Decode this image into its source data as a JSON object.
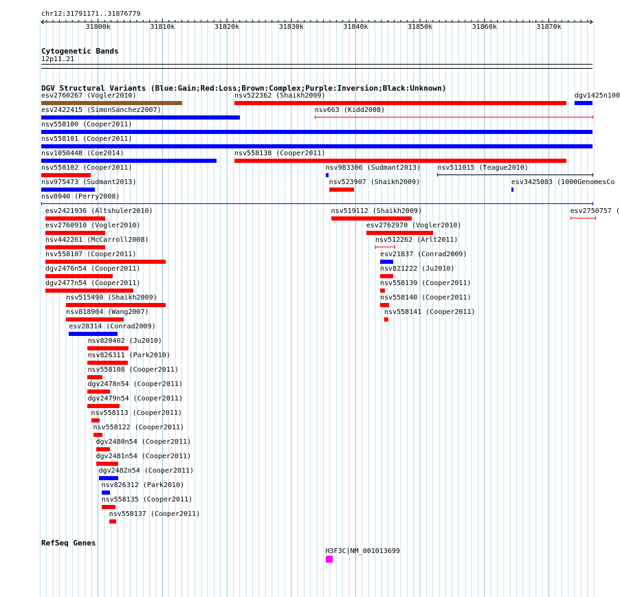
{
  "ruler": {
    "locus": "chr12:31791171..31876779",
    "start": 31791171,
    "end": 31876779,
    "ticks": [
      "31800k",
      "31810k",
      "31820k",
      "31830k",
      "31840k",
      "31850k",
      "31860k",
      "31870k"
    ]
  },
  "cytoband": {
    "title": "Cytogenetic Bands",
    "band": "12p11.21"
  },
  "dgv": {
    "title": "DGV Structural Variants (Blue:Gain;Red:Loss;Brown:Complex;Purple:Inversion;Black:Unknown)",
    "colors": {
      "gain": "#0000ff",
      "loss": "#ff0000",
      "complex": "#8b5a2b",
      "inversion": "#800080",
      "unknown": "#000000"
    },
    "features": [
      {
        "label": "esv2760267 (Vogler2010)",
        "type": "complex",
        "start": 31791171,
        "end": 31813061,
        "row": 0
      },
      {
        "label": "nsv522362 (Shaikh2009)",
        "type": "loss",
        "start": 31821171,
        "end": 31872681,
        "row": 0
      },
      {
        "label": "dgv1425n100",
        "type": "gain",
        "start": 31873971,
        "end": 31876779,
        "row": 0
      },
      {
        "label": "esv2422415 (SimonSanchez2007)",
        "type": "gain",
        "start": 31791171,
        "end": 31822021,
        "row": 1
      },
      {
        "label": "nsv663 (Kidd2008)",
        "type": "loss-line",
        "start": 31833621,
        "end": 31876779,
        "row": 1
      },
      {
        "label": "nsv558100 (Cooper2011)",
        "type": "gain",
        "start": 31791171,
        "end": 31876779,
        "row": 2
      },
      {
        "label": "nsv558101 (Cooper2011)",
        "type": "gain",
        "start": 31791171,
        "end": 31876779,
        "row": 3
      },
      {
        "label": "nsv1050448 (Coe2014)",
        "type": "gain",
        "start": 31791171,
        "end": 31818371,
        "row": 4
      },
      {
        "label": "nsv558138 (Cooper2011)",
        "type": "loss",
        "start": 31821171,
        "end": 31872681,
        "row": 4
      },
      {
        "label": "nsv558102 (Cooper2011)",
        "type": "loss",
        "start": 31791171,
        "end": 31798891,
        "row": 5
      },
      {
        "label": "nsv983306 (Sudmant2013)",
        "type": "gain",
        "start": 31835311,
        "end": 31835741,
        "row": 5
      },
      {
        "label": "nsv511015 (Teague2010)",
        "type": "unknown-line",
        "start": 31852691,
        "end": 31876779,
        "row": 5
      },
      {
        "label": "nsv975473 (Sudmant2013)",
        "type": "gain",
        "start": 31791171,
        "end": 31799511,
        "row": 6
      },
      {
        "label": "nsv523907 (Shaikh2009)",
        "type": "loss",
        "start": 31835851,
        "end": 31839721,
        "row": 6
      },
      {
        "label": "esv3425083 (1000GenomesCo",
        "type": "gain",
        "start": 31864171,
        "end": 31864391,
        "row": 6
      },
      {
        "label": "nsv8940 (Perry2008)",
        "type": "gain-line",
        "start": 31791171,
        "end": 31876779,
        "row": 7
      },
      {
        "label": "esv2421936 (Altshuler2010)",
        "type": "loss",
        "start": 31791811,
        "end": 31801061,
        "row": 8
      },
      {
        "label": "nsv519112 (Shaikh2009)",
        "type": "loss",
        "start": 31836171,
        "end": 31848741,
        "row": 8
      },
      {
        "label": "esv2750757 (",
        "type": "loss-line",
        "start": 31873321,
        "end": 31877251,
        "row": 8
      },
      {
        "label": "esv2760910 (Vogler2010)",
        "type": "loss",
        "start": 31791811,
        "end": 31801061,
        "row": 9
      },
      {
        "label": "esv2762970 (Vogler2010)",
        "type": "loss",
        "start": 31841651,
        "end": 31851971,
        "row": 9
      },
      {
        "label": "nsv442261 (McCarroll2008)",
        "type": "loss",
        "start": 31791811,
        "end": 31801061,
        "row": 10
      },
      {
        "label": "nsv512262 (Arlt2011)",
        "type": "loss-line",
        "start": 31843051,
        "end": 31846061,
        "row": 10
      },
      {
        "label": "nsv558107 (Cooper2011)",
        "type": "loss",
        "start": 31791811,
        "end": 31810531,
        "row": 11
      },
      {
        "label": "esv21837 (Conrad2009)",
        "type": "gain",
        "start": 31843801,
        "end": 31845851,
        "row": 11
      },
      {
        "label": "dgv2476n54 (Cooper2011)",
        "type": "loss",
        "start": 31791811,
        "end": 31802231,
        "row": 12
      },
      {
        "label": "nsv821222 (Ju2010)",
        "type": "loss",
        "start": 31843801,
        "end": 31845851,
        "row": 12
      },
      {
        "label": "dgv2477n54 (Cooper2011)",
        "type": "loss",
        "start": 31791811,
        "end": 31805461,
        "row": 13
      },
      {
        "label": "nsv558139 (Cooper2011)",
        "type": "loss",
        "start": 31843801,
        "end": 31844551,
        "row": 13
      },
      {
        "label": "nsv515490 (Shaikh2009)",
        "type": "loss",
        "start": 31795031,
        "end": 31810531,
        "row": 14
      },
      {
        "label": "nsv558140 (Cooper2011)",
        "type": "loss",
        "start": 31843801,
        "end": 31845211,
        "row": 14
      },
      {
        "label": "nsv818904 (Wang2007)",
        "type": "loss",
        "start": 31795031,
        "end": 31803951,
        "row": 15
      },
      {
        "label": "nsv558141 (Cooper2011)",
        "type": "loss",
        "start": 31844441,
        "end": 31845101,
        "row": 15
      },
      {
        "label": "esv28314 (Conrad2009)",
        "type": "gain",
        "start": 31795461,
        "end": 31802981,
        "row": 16
      },
      {
        "label": "nsv820402 (Ju2010)",
        "type": "loss",
        "start": 31798371,
        "end": 31804701,
        "row": 17
      },
      {
        "label": "nsv826311 (Park2010)",
        "type": "loss",
        "start": 31798371,
        "end": 31804591,
        "row": 18
      },
      {
        "label": "nsv558108 (Cooper2011)",
        "type": "loss",
        "start": 31798371,
        "end": 31800631,
        "row": 19
      },
      {
        "label": "dgv2478n54 (Cooper2011)",
        "type": "loss",
        "start": 31798371,
        "end": 31801811,
        "row": 20
      },
      {
        "label": "dgv2479n54 (Cooper2011)",
        "type": "loss",
        "start": 31798371,
        "end": 31803311,
        "row": 21
      },
      {
        "label": "nsv558113 (Cooper2011)",
        "type": "loss",
        "start": 31798911,
        "end": 31800201,
        "row": 22
      },
      {
        "label": "nsv558122 (Cooper2011)",
        "type": "loss",
        "start": 31799231,
        "end": 31800631,
        "row": 23
      },
      {
        "label": "dgv2480n54 (Cooper2011)",
        "type": "loss",
        "start": 31799661,
        "end": 31801811,
        "row": 24
      },
      {
        "label": "dgv2481n54 (Cooper2011)",
        "type": "loss",
        "start": 31799661,
        "end": 31803101,
        "row": 25
      },
      {
        "label": "dgv2482n54 (Cooper2011)",
        "type": "gain",
        "start": 31800091,
        "end": 31803101,
        "row": 26
      },
      {
        "label": "nsv826312 (Park2010)",
        "type": "gain",
        "start": 31800521,
        "end": 31801811,
        "row": 27
      },
      {
        "label": "nsv558135 (Cooper2011)",
        "type": "loss",
        "start": 31800521,
        "end": 31802661,
        "row": 28
      },
      {
        "label": "nsv558137 (Cooper2011)",
        "type": "loss",
        "start": 31801701,
        "end": 31802771,
        "row": 29
      }
    ]
  },
  "refseq": {
    "title": "RefSeq Genes",
    "gene_label": "H3F3C|NM_001013699",
    "gene_color": "#ff00ff",
    "start": 31835311,
    "end": 31836381
  }
}
